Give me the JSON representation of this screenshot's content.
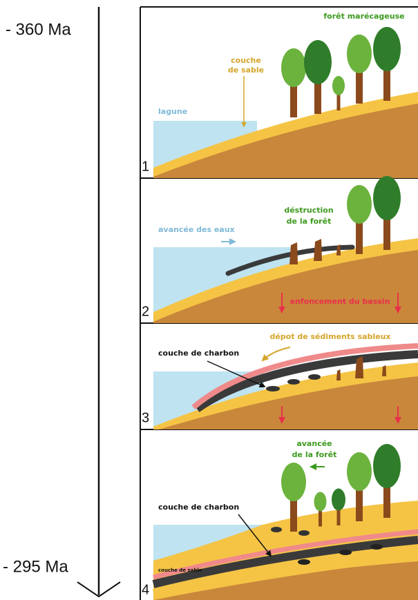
{
  "timeline": {
    "start": "- 360 Ma",
    "end": "- 295 Ma"
  },
  "panels": [
    {
      "number": "1",
      "labels": [
        [
          "forêt marécageuse"
        ],
        [
          "couche",
          "de sable"
        ],
        [
          "lagune"
        ]
      ]
    },
    {
      "number": "2",
      "labels": [
        [
          "déstruction",
          "de la forêt"
        ],
        [
          "avancée des eaux"
        ],
        [
          "enfoncement du bassin"
        ]
      ]
    },
    {
      "number": "3",
      "labels": [
        [
          "dépot de sédiments sableux"
        ],
        [
          "couche de charbon"
        ]
      ]
    },
    {
      "number": "4",
      "labels": [
        [
          "avancée",
          "de la forêt"
        ],
        [
          "couche de charbon"
        ],
        [
          "couche de sable"
        ]
      ]
    }
  ]
}
